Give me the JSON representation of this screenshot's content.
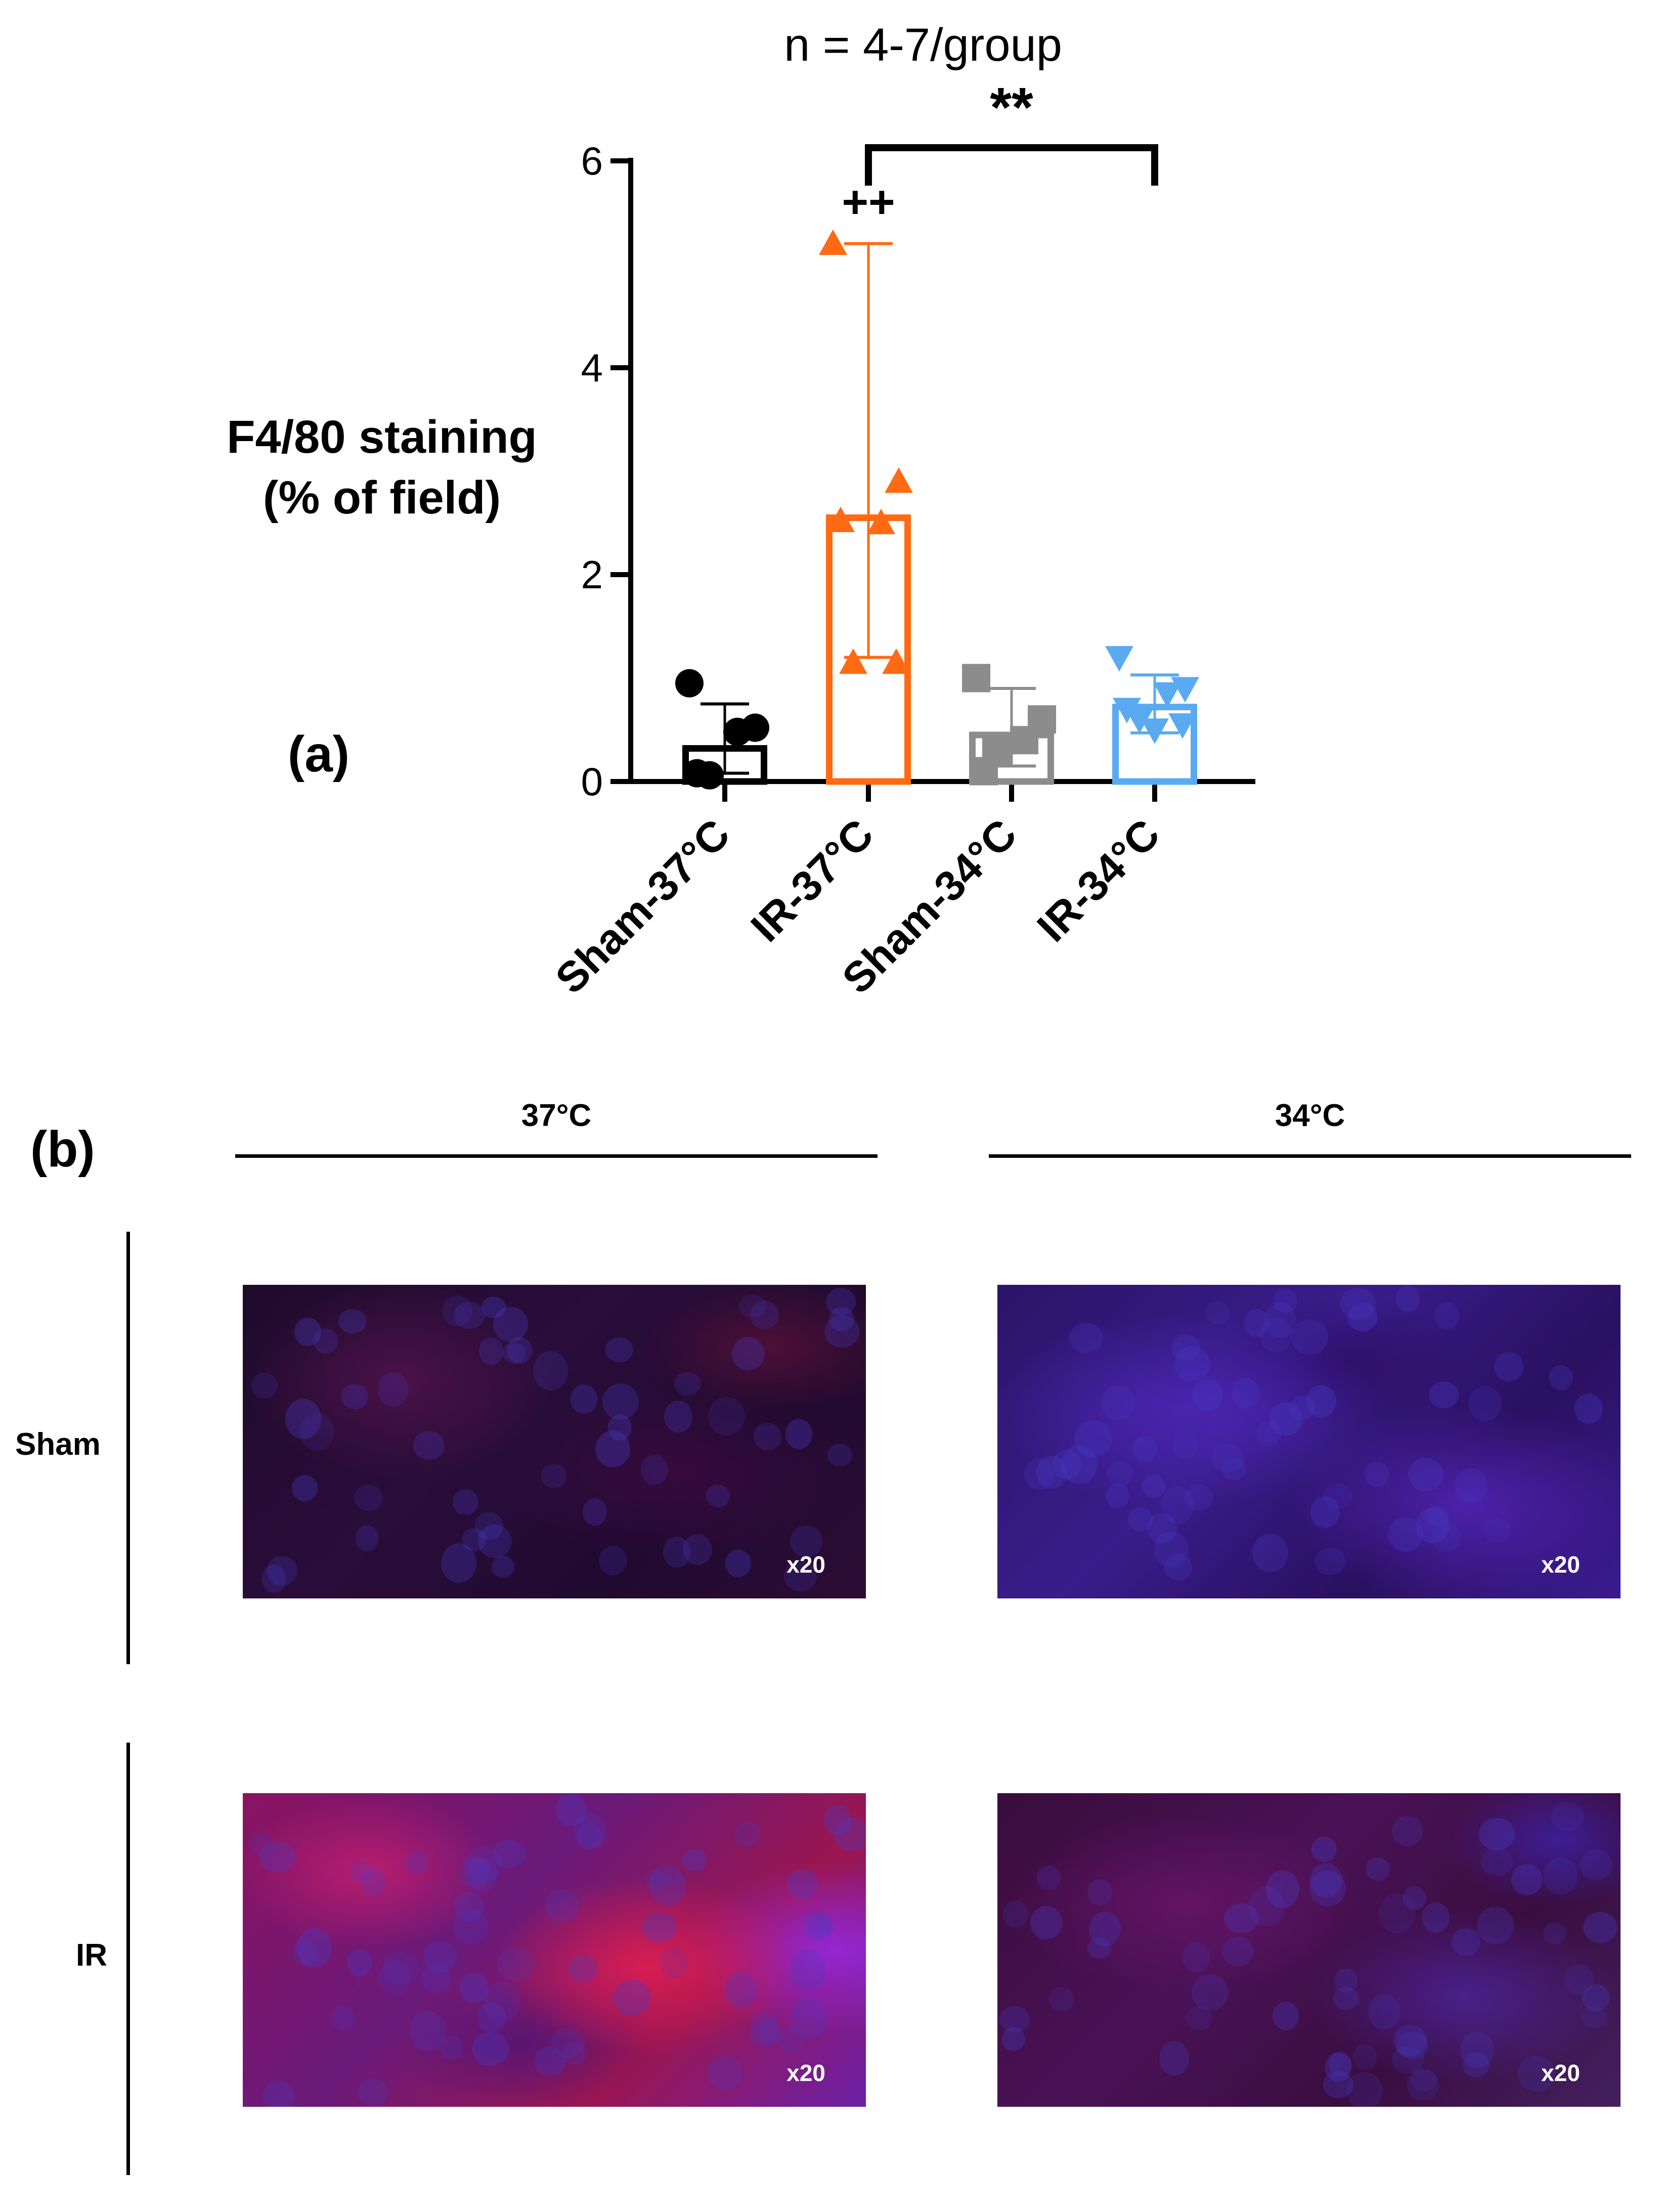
{
  "panel_a": {
    "label": "(a)",
    "subtitle": "n = 4-7/group",
    "ylabel_line1": "F4/80 staining",
    "ylabel_line2": "(% of field)",
    "significance": "**",
    "plus_marker": "++"
  },
  "chart_data": {
    "type": "bar",
    "title": "",
    "subtitle": "n = 4-7/group",
    "xlabel": "",
    "ylabel": "F4/80 staining (% of field)",
    "ylim": [
      0,
      6
    ],
    "yticks": [
      "0",
      "2",
      "4",
      "6"
    ],
    "categories": [
      "Sham-37°C",
      "IR-37°C",
      "Sham-34°C",
      "IR-34°C"
    ],
    "values": [
      0.32,
      2.55,
      0.45,
      0.72
    ],
    "error_low": [
      0.08,
      1.2,
      0.15,
      0.47
    ],
    "error_high": [
      0.75,
      5.2,
      0.9,
      1.03
    ],
    "points": [
      [
        0.95,
        0.52,
        0.48,
        0.08,
        0.06
      ],
      [
        5.2,
        2.9,
        2.5,
        2.52,
        1.15,
        1.15
      ],
      [
        1.0,
        0.6,
        0.4,
        0.1,
        0.3
      ],
      [
        1.2,
        0.9,
        0.85,
        0.7,
        0.6,
        0.55,
        0.5
      ]
    ],
    "markers": [
      "circle",
      "triangle-up",
      "square",
      "triangle-down"
    ],
    "colors": [
      "#000000",
      "#ff6a12",
      "#8c8c8c",
      "#5aaaf2"
    ],
    "annotations": [
      "++",
      "**"
    ],
    "grid": false
  },
  "panel_b": {
    "label": "(b)",
    "columns": [
      "37°C",
      "34°C"
    ],
    "rows": [
      "Sham",
      "IR"
    ],
    "magnification": [
      "x20",
      "x20",
      "x20",
      "x20"
    ]
  }
}
